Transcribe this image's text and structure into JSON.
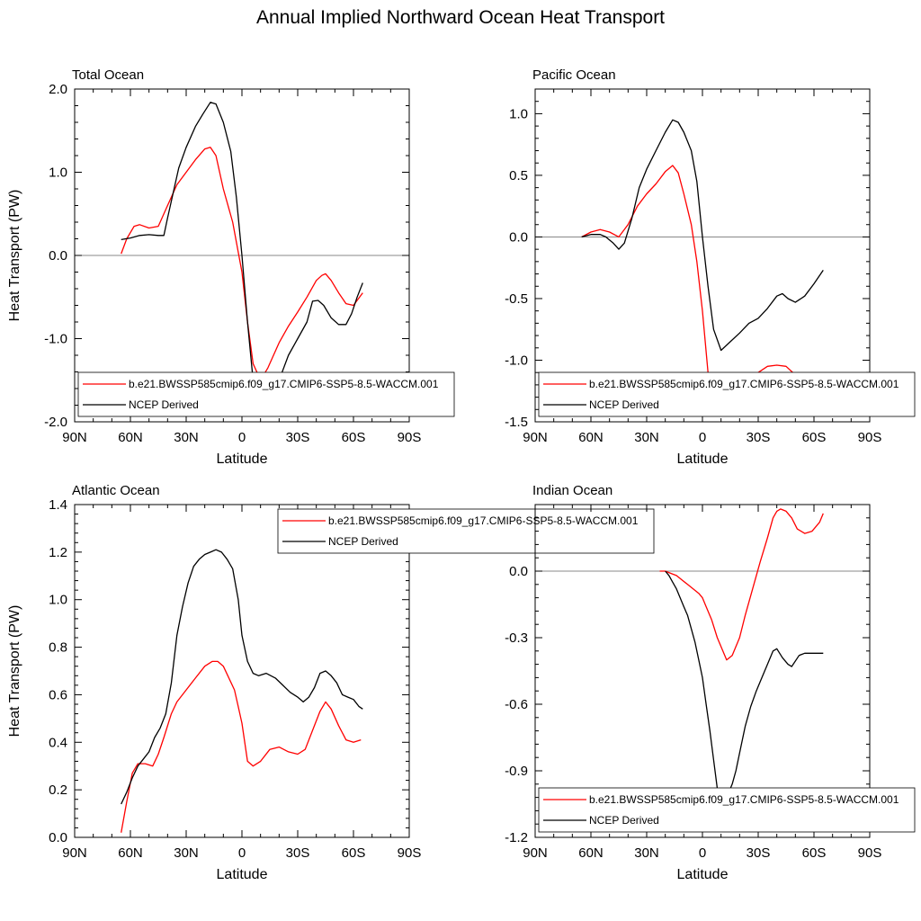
{
  "title": "Annual Implied Northward Ocean Heat Transport",
  "colors": {
    "model": "#ff0000",
    "ncep": "#000000",
    "zero_line": "#888888"
  },
  "legend": {
    "model": "b.e21.BWSSP585cmip6.f09_g17.CMIP6-SSP5-8.5-WACCM.001",
    "ncep": "NCEP Derived"
  },
  "chart_data": [
    {
      "type": "line",
      "title": "Total Ocean",
      "xlabel": "Latitude",
      "ylabel": "Heat Transport (PW)",
      "x_ticks": [
        90,
        60,
        30,
        0,
        -30,
        -60,
        -90
      ],
      "x_tick_labels": [
        "90N",
        "60N",
        "30N",
        "0",
        "30S",
        "60S",
        "90S"
      ],
      "xlim": [
        90,
        -90
      ],
      "ylim": [
        -2.0,
        2.0
      ],
      "y_ticks": [
        2.0,
        1.0,
        0.0,
        -1.0,
        -2.0
      ],
      "y_tick_labels": [
        "2.0",
        "1.0",
        "0.0",
        "-1.0",
        "-2.0"
      ],
      "legend_position": "bottom-right",
      "series": [
        {
          "name": "b.e21.BWSSP585cmip6.f09_g17.CMIP6-SSP5-8.5-WACCM.001",
          "x": [
            65,
            62,
            58,
            55,
            50,
            45,
            40,
            35,
            30,
            25,
            20,
            17,
            14,
            10,
            5,
            0,
            -3,
            -6,
            -10,
            -14,
            -20,
            -25,
            -30,
            -35,
            -40,
            -43,
            -45,
            -48,
            -52,
            -56,
            -60,
            -65
          ],
          "y": [
            0.02,
            0.2,
            0.35,
            0.37,
            0.33,
            0.35,
            0.6,
            0.85,
            1.0,
            1.15,
            1.28,
            1.3,
            1.2,
            0.8,
            0.4,
            -0.2,
            -0.8,
            -1.3,
            -1.5,
            -1.35,
            -1.05,
            -0.85,
            -0.68,
            -0.5,
            -0.3,
            -0.24,
            -0.22,
            -0.3,
            -0.45,
            -0.58,
            -0.6,
            -0.45
          ]
        },
        {
          "name": "NCEP Derived",
          "x": [
            65,
            60,
            55,
            50,
            45,
            42,
            40,
            37,
            34,
            30,
            25,
            21,
            17,
            14,
            10,
            6,
            3,
            0,
            -3,
            -6,
            -9,
            -13,
            -17,
            -20,
            -25,
            -30,
            -35,
            -38,
            -41,
            -44,
            -48,
            -52,
            -56,
            -59,
            -62,
            -65
          ],
          "y": [
            0.19,
            0.21,
            0.24,
            0.25,
            0.24,
            0.24,
            0.45,
            0.75,
            1.05,
            1.3,
            1.55,
            1.7,
            1.84,
            1.82,
            1.6,
            1.25,
            0.7,
            0.0,
            -0.8,
            -1.5,
            -1.63,
            -1.65,
            -1.6,
            -1.5,
            -1.2,
            -1.0,
            -0.8,
            -0.55,
            -0.54,
            -0.6,
            -0.75,
            -0.83,
            -0.83,
            -0.7,
            -0.5,
            -0.33
          ]
        }
      ]
    },
    {
      "type": "line",
      "title": "Pacific Ocean",
      "xlabel": "Latitude",
      "x_ticks": [
        90,
        60,
        30,
        0,
        -30,
        -60,
        -90
      ],
      "x_tick_labels": [
        "90N",
        "60N",
        "30N",
        "0",
        "30S",
        "60S",
        "90S"
      ],
      "xlim": [
        90,
        -90
      ],
      "ylim": [
        -1.5,
        1.2
      ],
      "y_ticks": [
        1.0,
        0.5,
        0.0,
        -0.5,
        -1.0,
        -1.5
      ],
      "y_tick_labels": [
        "1.0",
        "0.5",
        "0.0",
        "-0.5",
        "-1.0",
        "-1.5"
      ],
      "legend_position": "bottom-right",
      "series": [
        {
          "name": "b.e21.BWSSP585cmip6.f09_g17.CMIP6-SSP5-8.5-WACCM.001",
          "x": [
            65,
            60,
            55,
            50,
            45,
            40,
            35,
            30,
            25,
            20,
            16,
            13,
            10,
            6,
            3,
            0,
            -3,
            -6,
            -9,
            -11,
            -15,
            -20,
            -25,
            -30,
            -35,
            -40,
            -45,
            -50,
            -55,
            -58,
            -61,
            -65
          ],
          "y": [
            0.0,
            0.04,
            0.06,
            0.04,
            0.0,
            0.1,
            0.25,
            0.35,
            0.43,
            0.53,
            0.58,
            0.52,
            0.35,
            0.1,
            -0.2,
            -0.6,
            -1.1,
            -1.3,
            -1.4,
            -1.42,
            -1.35,
            -1.25,
            -1.18,
            -1.1,
            -1.05,
            -1.04,
            -1.05,
            -1.12,
            -1.19,
            -1.19,
            -1.17,
            -1.12
          ]
        },
        {
          "name": "NCEP Derived",
          "x": [
            65,
            60,
            55,
            52,
            48,
            45,
            42,
            38,
            34,
            30,
            25,
            20,
            16,
            13,
            10,
            6,
            3,
            0,
            -3,
            -6,
            -10,
            -15,
            -20,
            -25,
            -30,
            -35,
            -40,
            -43,
            -46,
            -50,
            -55,
            -60,
            -65
          ],
          "y": [
            0.0,
            0.02,
            0.02,
            0.0,
            -0.05,
            -0.1,
            -0.05,
            0.15,
            0.4,
            0.55,
            0.7,
            0.85,
            0.95,
            0.93,
            0.85,
            0.7,
            0.45,
            0.0,
            -0.4,
            -0.75,
            -0.92,
            -0.85,
            -0.78,
            -0.7,
            -0.66,
            -0.58,
            -0.48,
            -0.46,
            -0.5,
            -0.53,
            -0.48,
            -0.38,
            -0.27
          ]
        }
      ]
    },
    {
      "type": "line",
      "title": "Atlantic Ocean",
      "xlabel": "Latitude",
      "ylabel": "Heat Transport (PW)",
      "x_ticks": [
        90,
        60,
        30,
        0,
        -30,
        -60,
        -90
      ],
      "x_tick_labels": [
        "90N",
        "60N",
        "30N",
        "0",
        "30S",
        "60S",
        "90S"
      ],
      "xlim": [
        90,
        -90
      ],
      "ylim": [
        0.0,
        1.4
      ],
      "y_ticks": [
        0.0,
        0.2,
        0.4,
        0.6,
        0.8,
        1.0,
        1.2,
        1.4
      ],
      "y_tick_labels": [
        "0.0",
        "0.2",
        "0.4",
        "0.6",
        "0.8",
        "1.0",
        "1.2",
        "1.4"
      ],
      "legend_position": "top-right",
      "series": [
        {
          "name": "b.e21.BWSSP585cmip6.f09_g17.CMIP6-SSP5-8.5-WACCM.001",
          "x": [
            65,
            62,
            59,
            56,
            52,
            48,
            45,
            42,
            38,
            35,
            30,
            25,
            20,
            16,
            13,
            10,
            7,
            4,
            2,
            0,
            -3,
            -6,
            -10,
            -15,
            -20,
            -25,
            -30,
            -34,
            -38,
            -42,
            -45,
            -48,
            -52,
            -56,
            -60,
            -64
          ],
          "y": [
            0.02,
            0.15,
            0.27,
            0.31,
            0.31,
            0.3,
            0.35,
            0.42,
            0.52,
            0.57,
            0.62,
            0.67,
            0.72,
            0.74,
            0.74,
            0.72,
            0.67,
            0.62,
            0.55,
            0.48,
            0.32,
            0.3,
            0.32,
            0.37,
            0.38,
            0.36,
            0.35,
            0.37,
            0.45,
            0.53,
            0.57,
            0.54,
            0.47,
            0.41,
            0.4,
            0.41
          ]
        },
        {
          "name": "NCEP Derived",
          "x": [
            65,
            62,
            59,
            56,
            53,
            50,
            47,
            44,
            41,
            38,
            35,
            32,
            29,
            26,
            23,
            20,
            17,
            14,
            11,
            8,
            5,
            2,
            0,
            -3,
            -6,
            -9,
            -13,
            -18,
            -22,
            -26,
            -30,
            -33,
            -36,
            -39,
            -42,
            -45,
            -48,
            -51,
            -54,
            -57,
            -60,
            -63,
            -65
          ],
          "y": [
            0.14,
            0.19,
            0.25,
            0.3,
            0.33,
            0.36,
            0.42,
            0.46,
            0.52,
            0.65,
            0.85,
            0.97,
            1.07,
            1.14,
            1.17,
            1.19,
            1.2,
            1.21,
            1.2,
            1.17,
            1.13,
            1.0,
            0.85,
            0.74,
            0.69,
            0.68,
            0.69,
            0.67,
            0.64,
            0.61,
            0.59,
            0.57,
            0.59,
            0.63,
            0.69,
            0.7,
            0.68,
            0.65,
            0.6,
            0.59,
            0.58,
            0.55,
            0.54
          ]
        }
      ]
    },
    {
      "type": "line",
      "title": "Indian Ocean",
      "xlabel": "Latitude",
      "x_ticks": [
        90,
        60,
        30,
        0,
        -30,
        -60,
        -90
      ],
      "x_tick_labels": [
        "90N",
        "60N",
        "30N",
        "0",
        "30S",
        "60S",
        "90S"
      ],
      "xlim": [
        90,
        -90
      ],
      "ylim": [
        -1.2,
        0.3
      ],
      "y_ticks": [
        0.0,
        -0.3,
        -0.6,
        -0.9,
        -1.2
      ],
      "y_tick_labels": [
        "0.0",
        "-0.3",
        "-0.6",
        "-0.9",
        "-1.2"
      ],
      "legend_position": "bottom-right",
      "series": [
        {
          "name": "b.e21.BWSSP585cmip6.f09_g17.CMIP6-SSP5-8.5-WACCM.001",
          "x": [
            23,
            20,
            17,
            14,
            11,
            8,
            5,
            2,
            0,
            -2,
            -5,
            -8,
            -11,
            -13,
            -16,
            -20,
            -23,
            -27,
            -31,
            -35,
            -38,
            -40,
            -42,
            -45,
            -48,
            -51,
            -55,
            -59,
            -63,
            -65
          ],
          "y": [
            0.0,
            0.0,
            -0.01,
            -0.02,
            -0.04,
            -0.06,
            -0.08,
            -0.1,
            -0.12,
            -0.16,
            -0.22,
            -0.3,
            -0.36,
            -0.4,
            -0.38,
            -0.3,
            -0.2,
            -0.08,
            0.04,
            0.15,
            0.24,
            0.27,
            0.28,
            0.27,
            0.24,
            0.19,
            0.17,
            0.18,
            0.22,
            0.26
          ]
        },
        {
          "name": "NCEP Derived",
          "x": [
            20,
            18,
            16,
            14,
            12,
            10,
            8,
            6,
            4,
            2,
            0,
            -2,
            -4,
            -6,
            -8,
            -10,
            -12,
            -14,
            -16,
            -18,
            -20,
            -23,
            -26,
            -29,
            -32,
            -35,
            -38,
            -40,
            -43,
            -46,
            -48,
            -52,
            -55,
            -58,
            -61,
            -65
          ],
          "y": [
            0.0,
            -0.02,
            -0.05,
            -0.08,
            -0.12,
            -0.16,
            -0.2,
            -0.26,
            -0.32,
            -0.4,
            -0.48,
            -0.6,
            -0.72,
            -0.85,
            -0.98,
            -1.03,
            -1.02,
            -1.0,
            -0.96,
            -0.9,
            -0.82,
            -0.7,
            -0.61,
            -0.54,
            -0.48,
            -0.42,
            -0.36,
            -0.35,
            -0.39,
            -0.42,
            -0.43,
            -0.38,
            -0.37,
            -0.37,
            -0.37,
            -0.37
          ]
        }
      ]
    }
  ]
}
